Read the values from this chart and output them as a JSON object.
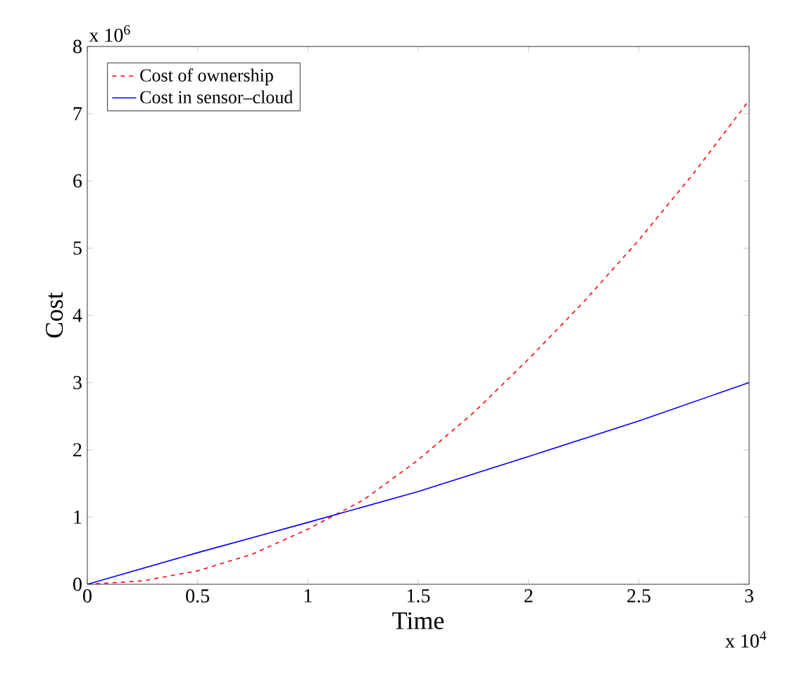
{
  "chart_data": {
    "type": "line",
    "xlabel": "Time",
    "ylabel": "Cost",
    "annotations": [
      "x 10$^{6}$",
      "x 10$^{4}$"
    ],
    "xlim": [
      0,
      3
    ],
    "ylim": [
      0,
      8
    ],
    "xticks": [
      0,
      0.5,
      1,
      1.5,
      2,
      2.5,
      3
    ],
    "yticks": [
      0,
      1,
      2,
      3,
      4,
      5,
      6,
      7,
      8
    ],
    "legend": "top left",
    "marker": "none",
    "series": [
      {
        "name": "Cost of ownership",
        "color": "#ff0000",
        "line_style": "dashed",
        "x": [
          0,
          0.25,
          0.5,
          0.75,
          1,
          1.25,
          1.5,
          1.75,
          2,
          2.25,
          2.5,
          2.75,
          3
        ],
        "values": [
          0,
          0.05,
          0.2,
          0.45,
          0.82,
          1.25,
          1.85,
          2.55,
          3.35,
          4.2,
          5.12,
          6.12,
          7.2
        ]
      },
      {
        "name": "Cost in sensor–cloud",
        "color": "#0000ff",
        "line_style": "solid",
        "x": [
          0,
          0.5,
          1,
          1.5,
          2,
          2.5,
          3
        ],
        "values": [
          0,
          0.47,
          0.92,
          1.38,
          1.9,
          2.43,
          3.0
        ]
      }
    ]
  }
}
